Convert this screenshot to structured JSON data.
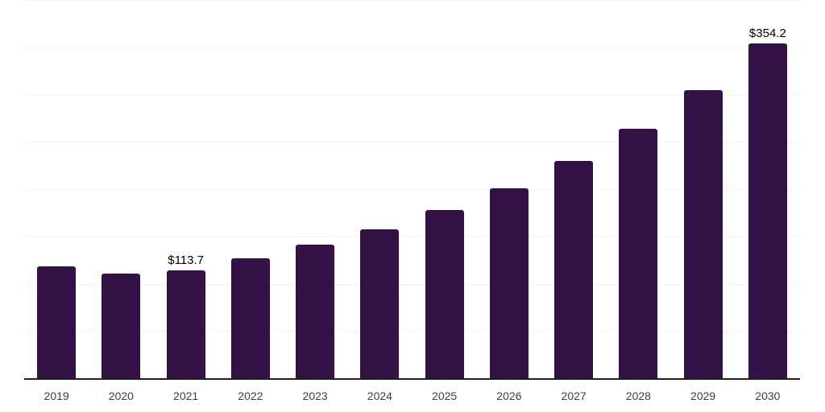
{
  "chart_data": {
    "type": "bar",
    "title": "",
    "xlabel": "",
    "ylabel": "",
    "categories": [
      "2019",
      "2020",
      "2021",
      "2022",
      "2023",
      "2024",
      "2025",
      "2026",
      "2027",
      "2028",
      "2029",
      "2030"
    ],
    "values": [
      118.0,
      110.9,
      113.7,
      126.5,
      141.0,
      157.8,
      177.6,
      201.2,
      229.9,
      263.6,
      304.5,
      354.2
    ],
    "point_labels": [
      null,
      null,
      "$113.7",
      null,
      null,
      null,
      null,
      null,
      null,
      null,
      null,
      "$354.2"
    ],
    "ylim": [
      0,
      400
    ],
    "grid_step": 50,
    "grid": true,
    "legend": false,
    "colors": {
      "bar": "#331247",
      "gridline": "#f2f1f3",
      "axis_line": "#1f1f1f",
      "value_label": "#000000",
      "tick_label": "#404040"
    }
  }
}
